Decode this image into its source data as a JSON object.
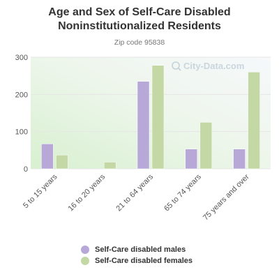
{
  "header": {
    "title_line1": "Age and Sex of Self-Care Disabled",
    "title_line2": "Noninstitutionalized Residents",
    "subtitle": "Zip code 95838"
  },
  "watermark": {
    "text": "City-Data.com",
    "icon": "magnifier-icon"
  },
  "colors": {
    "males": "#b7a8d8",
    "females": "#c4d8a6",
    "axis_text": "#555555",
    "grid": "#e6e6e6"
  },
  "chart_data": {
    "type": "bar",
    "title": "Age and Sex of Self-Care Disabled Noninstitutionalized Residents",
    "subtitle": "Zip code 95838",
    "categories": [
      "5 to 15 years",
      "16 to 20 years",
      "21 to 64 years",
      "65 to 74 years",
      "75 years and over"
    ],
    "series": [
      {
        "name": "Self-Care disabled males",
        "values": [
          67,
          0,
          235,
          53,
          53
        ]
      },
      {
        "name": "Self-Care disabled females",
        "values": [
          37,
          18,
          278,
          125,
          260
        ]
      }
    ],
    "xlabel": "",
    "ylabel": "",
    "ylim": [
      0,
      300
    ],
    "yticks": [
      "0",
      "100",
      "200",
      "300"
    ],
    "grid": true,
    "legend_position": "bottom"
  },
  "legend": {
    "items": [
      {
        "label": "Self-Care disabled males"
      },
      {
        "label": "Self-Care disabled females"
      }
    ]
  }
}
